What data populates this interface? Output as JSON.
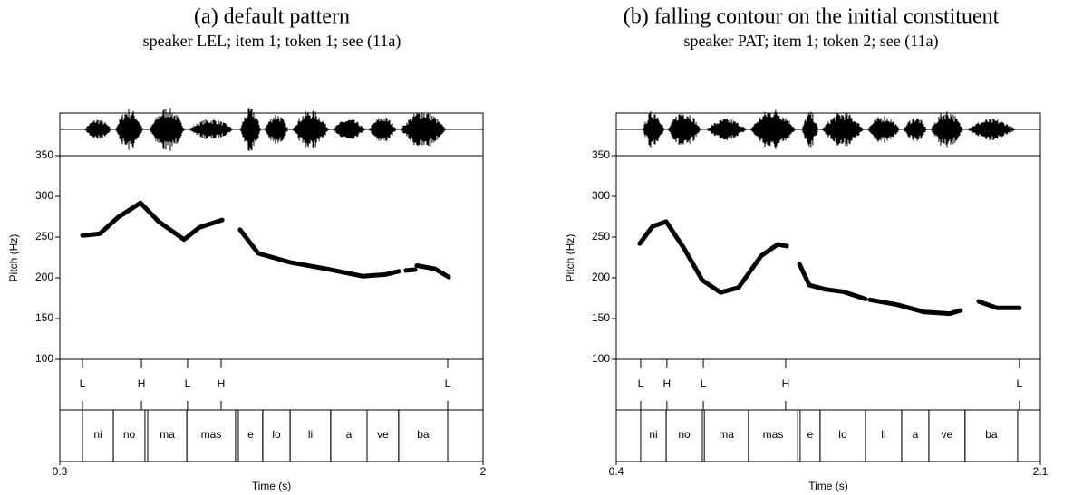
{
  "chart_data": [
    {
      "type": "line",
      "title": "(a) default pattern",
      "subtitle": "speaker LEL; item 1; token 1; see (11a)",
      "xlabel": "Time (s)",
      "ylabel": "Pitch (Hz)",
      "color": "#000000",
      "xlim": [
        0.3,
        2
      ],
      "xticks": [
        0.3,
        2
      ],
      "ylim": [
        100,
        350
      ],
      "yticks": [
        100,
        150,
        200,
        250,
        300,
        350
      ],
      "x": [
        0.391,
        0.46,
        0.533,
        0.624,
        0.697,
        0.799,
        0.861,
        0.952,
        null,
        1.024,
        1.097,
        1.225,
        1.37,
        1.516,
        1.607,
        1.661,
        null,
        1.69,
        1.727,
        null,
        1.734,
        1.807,
        1.862
      ],
      "values": [
        252,
        254,
        274,
        292,
        269,
        247,
        262,
        271,
        null,
        259,
        230,
        219,
        211,
        202,
        204,
        208,
        null,
        209,
        210,
        null,
        215,
        211,
        201
      ],
      "tones": [
        {
          "label": "L",
          "time": 0.391
        },
        {
          "label": "H",
          "time": 0.628
        },
        {
          "label": "L",
          "time": 0.813
        },
        {
          "label": "H",
          "time": 0.948
        },
        {
          "label": "L",
          "time": 1.858
        }
      ],
      "syllables": [
        {
          "label": "ni",
          "start": 0.391,
          "end": 0.515
        },
        {
          "label": "no",
          "start": 0.515,
          "end": 0.642
        },
        {
          "label": "ma",
          "start": 0.653,
          "end": 0.81
        },
        {
          "label": "mas",
          "start": 0.81,
          "end": 1.006
        },
        {
          "label": "e",
          "start": 1.017,
          "end": 1.115
        },
        {
          "label": "lo",
          "start": 1.115,
          "end": 1.225
        },
        {
          "label": "li",
          "start": 1.225,
          "end": 1.388
        },
        {
          "label": "a",
          "start": 1.388,
          "end": 1.534
        },
        {
          "label": "ve",
          "start": 1.534,
          "end": 1.661
        },
        {
          "label": "ba",
          "start": 1.661,
          "end": 1.858
        }
      ]
    },
    {
      "type": "line",
      "title": "(b) falling contour on the initial constituent",
      "subtitle": "speaker PAT; item 1; token 2; see (11a)",
      "xlabel": "Time (s)",
      "ylabel": "Pitch (Hz)",
      "color": "#000000",
      "xlim": [
        0.4,
        2.1
      ],
      "xticks": [
        0.4,
        2.1
      ],
      "ylim": [
        100,
        350
      ],
      "yticks": [
        100,
        150,
        200,
        250,
        300,
        350
      ],
      "x": [
        0.494,
        0.545,
        0.6,
        0.672,
        0.745,
        0.818,
        0.89,
        0.981,
        1.047,
        1.083,
        null,
        1.134,
        1.174,
        1.235,
        1.308,
        1.399,
        null,
        1.417,
        1.526,
        1.635,
        1.737,
        1.78,
        null,
        1.853,
        1.926,
        2.016
      ],
      "values": [
        242,
        263,
        269,
        236,
        197,
        182,
        188,
        227,
        241,
        239,
        null,
        217,
        191,
        186,
        183,
        174,
        null,
        173,
        167,
        158,
        156,
        160,
        null,
        171,
        163,
        163
      ],
      "tones": [
        {
          "label": "L",
          "time": 0.498
        },
        {
          "label": "H",
          "time": 0.603
        },
        {
          "label": "L",
          "time": 0.749
        },
        {
          "label": "H",
          "time": 1.079
        },
        {
          "label": "L",
          "time": 2.016
        }
      ],
      "syllables": [
        {
          "label": "ni",
          "start": 0.498,
          "end": 0.6
        },
        {
          "label": "no",
          "start": 0.6,
          "end": 0.745
        },
        {
          "label": "ma",
          "start": 0.753,
          "end": 0.93
        },
        {
          "label": "mas",
          "start": 0.93,
          "end": 1.127
        },
        {
          "label": "e",
          "start": 1.137,
          "end": 1.217
        },
        {
          "label": "lo",
          "start": 1.217,
          "end": 1.399
        },
        {
          "label": "li",
          "start": 1.399,
          "end": 1.544
        },
        {
          "label": "a",
          "start": 1.544,
          "end": 1.653
        },
        {
          "label": "ve",
          "start": 1.653,
          "end": 1.798
        },
        {
          "label": "ba",
          "start": 1.798,
          "end": 2.009
        }
      ]
    }
  ]
}
